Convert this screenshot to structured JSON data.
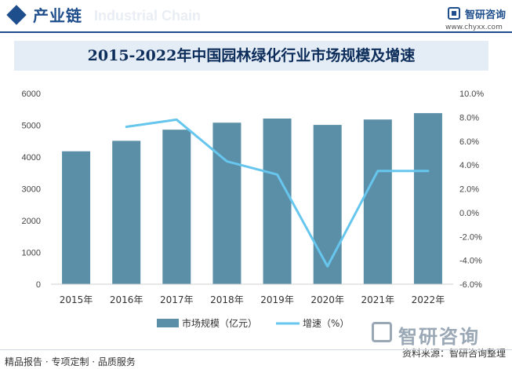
{
  "header": {
    "section_title": "产业链",
    "ghost_text": "Industrial Chain",
    "brand_name": "智研咨询",
    "brand_url": "www.chyxx.com",
    "brand_color": "#1f4e8c"
  },
  "chart_data": {
    "type": "bar",
    "title": "2015-2022年中国园林绿化行业市场规模及增速",
    "categories": [
      "2015年",
      "2016年",
      "2017年",
      "2018年",
      "2019年",
      "2020年",
      "2021年",
      "2022年"
    ],
    "series": [
      {
        "name": "市场规模（亿元）",
        "type": "bar",
        "axis": "left",
        "color": "#5b8fa8",
        "values": [
          4180,
          4510,
          4860,
          5080,
          5210,
          5010,
          5180,
          5380
        ]
      },
      {
        "name": "增速（%）",
        "type": "line",
        "axis": "right",
        "color": "#66c6ee",
        "values": [
          null,
          7.2,
          7.8,
          4.3,
          3.2,
          -4.5,
          3.5,
          3.5
        ]
      }
    ],
    "y_left": {
      "min": 0,
      "max": 6000,
      "ticks": [
        "0",
        "1000",
        "2000",
        "3000",
        "4000",
        "5000",
        "6000"
      ]
    },
    "y_right": {
      "min": -6,
      "max": 10,
      "ticks": [
        "-6.0%",
        "-4.0%",
        "-2.0%",
        "0.0%",
        "2.0%",
        "4.0%",
        "6.0%",
        "8.0%",
        "10.0%"
      ]
    },
    "grid": false,
    "legend_position": "bottom"
  },
  "footer": {
    "services": "精品报告 · 专项定制 · 品质服务",
    "source": "资料来源：智研咨询整理",
    "brand_mark": "智研咨询"
  }
}
